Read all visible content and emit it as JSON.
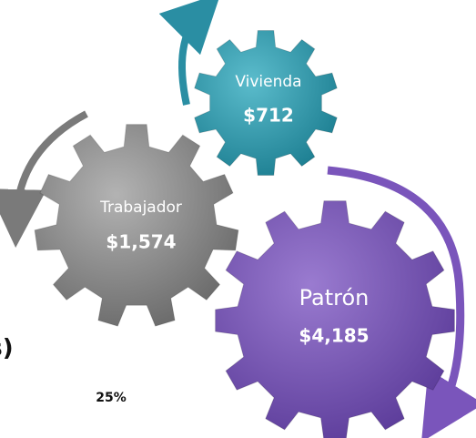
{
  "nodes": [
    {
      "label": "Vivienda",
      "value": "$712"
    },
    {
      "label": "Trabajador",
      "value": "$1,574"
    },
    {
      "label": "Patrón",
      "value": "$4,185"
    }
  ],
  "fragments": {
    "heading": "os)",
    "percent": "25%"
  }
}
